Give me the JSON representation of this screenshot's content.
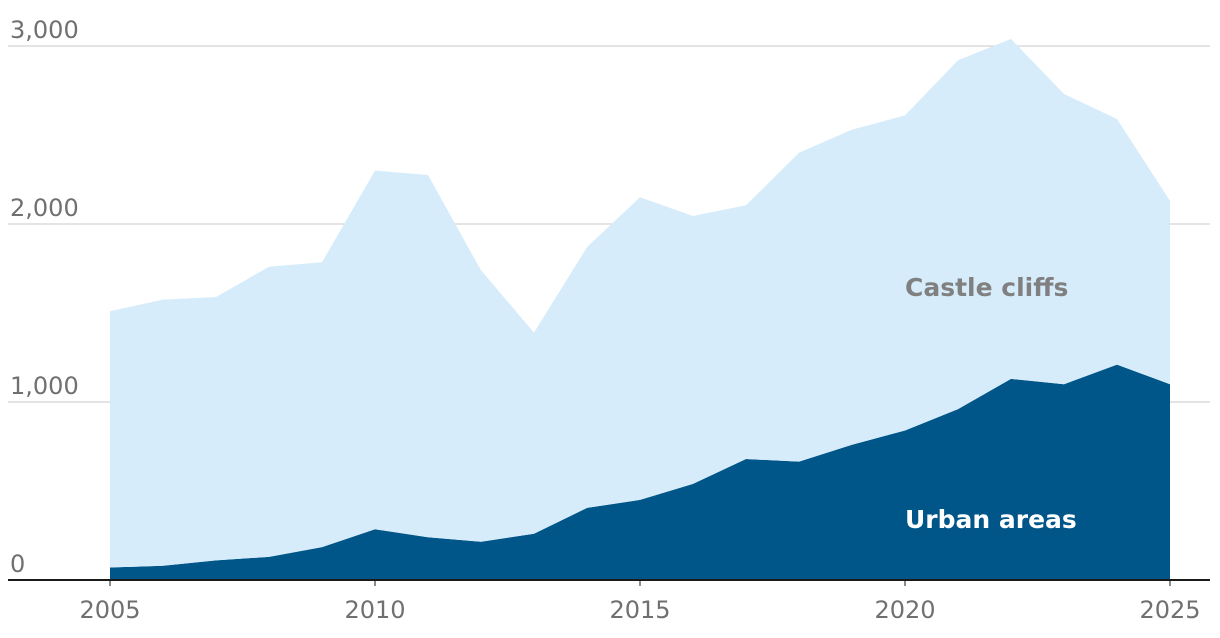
{
  "chart_data": {
    "type": "area",
    "stacked": true,
    "x": [
      2005,
      2006,
      2007,
      2008,
      2009,
      2010,
      2011,
      2012,
      2013,
      2014,
      2015,
      2016,
      2017,
      2018,
      2019,
      2020,
      2021,
      2022,
      2023,
      2024,
      2025
    ],
    "series": [
      {
        "name": "Urban areas",
        "color": "#005689",
        "label_color": "#ffffff",
        "values": [
          70,
          80,
          110,
          130,
          185,
          285,
          240,
          215,
          260,
          405,
          450,
          540,
          680,
          665,
          760,
          840,
          960,
          1130,
          1100,
          1210,
          1100
        ]
      },
      {
        "name": "Castle cliffs",
        "color": "#d6ecfb",
        "label_color": "#808080",
        "values": [
          1440,
          1495,
          1480,
          1630,
          1600,
          2015,
          2035,
          1525,
          1130,
          1465,
          1700,
          1505,
          1425,
          1735,
          1770,
          1770,
          1960,
          1910,
          1630,
          1380,
          1030
        ]
      }
    ],
    "y_ticks": [
      "0",
      "1,000",
      "2,000",
      "3,000"
    ],
    "y_tick_values": [
      0,
      1000,
      2000,
      3000
    ],
    "x_ticks": [
      "2005",
      "2010",
      "2015",
      "2020",
      "2025"
    ],
    "x_tick_values": [
      2005,
      2010,
      2015,
      2020,
      2025
    ],
    "ylim": [
      0,
      3000
    ],
    "xlim": [
      2005,
      2025
    ],
    "grid": true,
    "title": "",
    "xlabel": "",
    "ylabel": ""
  }
}
